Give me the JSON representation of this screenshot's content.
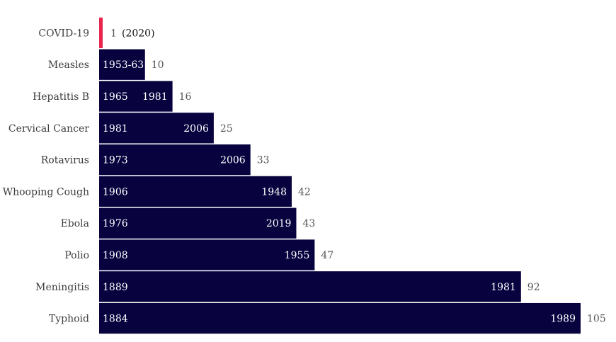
{
  "chart_data": {
    "type": "bar",
    "orientation": "horizontal",
    "categories": [
      "COVID-19",
      "Measles",
      "Hepatitis B",
      "Cervical Cancer",
      "Rotavirus",
      "Whooping Cough",
      "Ebola",
      "Polio",
      "Meningitis",
      "Typhoid"
    ],
    "values": [
      1,
      10,
      16,
      25,
      33,
      42,
      43,
      47,
      92,
      105
    ],
    "start_labels": [
      "",
      "1953-63",
      "1965",
      "1981",
      "1973",
      "1906",
      "1976",
      "1908",
      "1889",
      "1884"
    ],
    "end_labels": [
      "",
      "",
      "1981",
      "2006",
      "2006",
      "1948",
      "2019",
      "1955",
      "1981",
      "1989"
    ],
    "value_labels": [
      "1",
      "10",
      "16",
      "25",
      "33",
      "42",
      "43",
      "47",
      "92",
      "105"
    ],
    "annotations": [
      {
        "category": "COVID-19",
        "text": "(2020)"
      }
    ],
    "colors": {
      "bar": "#08033f",
      "highlight": "#e8264f"
    },
    "highlight_category": "COVID-19",
    "xlim": [
      0,
      105
    ],
    "grid": false,
    "legend": "none",
    "title": "",
    "xlabel": "",
    "ylabel": ""
  }
}
